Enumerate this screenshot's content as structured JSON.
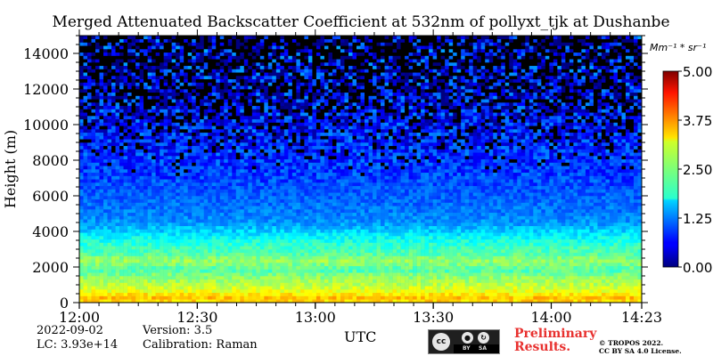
{
  "chart_data": {
    "type": "heatmap",
    "title": "Merged Attenuated Backscatter Coefficient at 532nm of pollyxt_tjk at Dushanbe",
    "xlabel": "UTC",
    "ylabel": "Height (m)",
    "x_ticks": [
      "12:00",
      "12:30",
      "13:00",
      "13:30",
      "14:00",
      "14:23"
    ],
    "x_tick_minutes": [
      0,
      30,
      60,
      90,
      120,
      143
    ],
    "xlim_minutes": [
      0,
      143
    ],
    "y_ticks": [
      0,
      2000,
      4000,
      6000,
      8000,
      10000,
      12000,
      14000
    ],
    "ylim": [
      0,
      15000
    ],
    "colorbar": {
      "unit": "Mm⁻¹ * sr⁻¹",
      "ticks": [
        "0.00",
        "1.25",
        "2.50",
        "3.75",
        "5.00"
      ],
      "range": [
        0,
        5
      ],
      "colormap": "jet"
    },
    "profile_height_m": [
      0,
      300,
      600,
      900,
      1200,
      1500,
      1800,
      2100,
      2400,
      2700,
      3000,
      3300,
      3600,
      4000,
      4500,
      5000,
      6000,
      7000,
      8000,
      10000,
      12000,
      15000
    ],
    "profile_value": [
      3.3,
      3.5,
      3.1,
      2.9,
      2.7,
      2.55,
      2.25,
      2.45,
      2.65,
      2.3,
      2.2,
      2.05,
      1.9,
      1.6,
      1.3,
      1.15,
      1.0,
      0.85,
      0.75,
      0.55,
      0.35,
      0.2
    ],
    "notes": "value range shown by the colour bar; strong surface aerosol layer below 600 m, elevated layers near 1500 m and 3000 m, noisy signal above 8000 m"
  },
  "meta": {
    "date": "2022-09-02",
    "lc": "LC: 3.93e+14",
    "version": "Version: 3.5",
    "calibration": "Calibration: Raman"
  },
  "footer": {
    "preliminary": "Preliminary Results.",
    "copyright_line1": "© TROPOS 2022.",
    "copyright_line2": "CC BY SA 4.0 License.",
    "license_badge": {
      "cc": "cc",
      "labels": [
        "BY",
        "SA"
      ],
      "icons": [
        "person-icon",
        "share-alike-icon"
      ]
    }
  }
}
